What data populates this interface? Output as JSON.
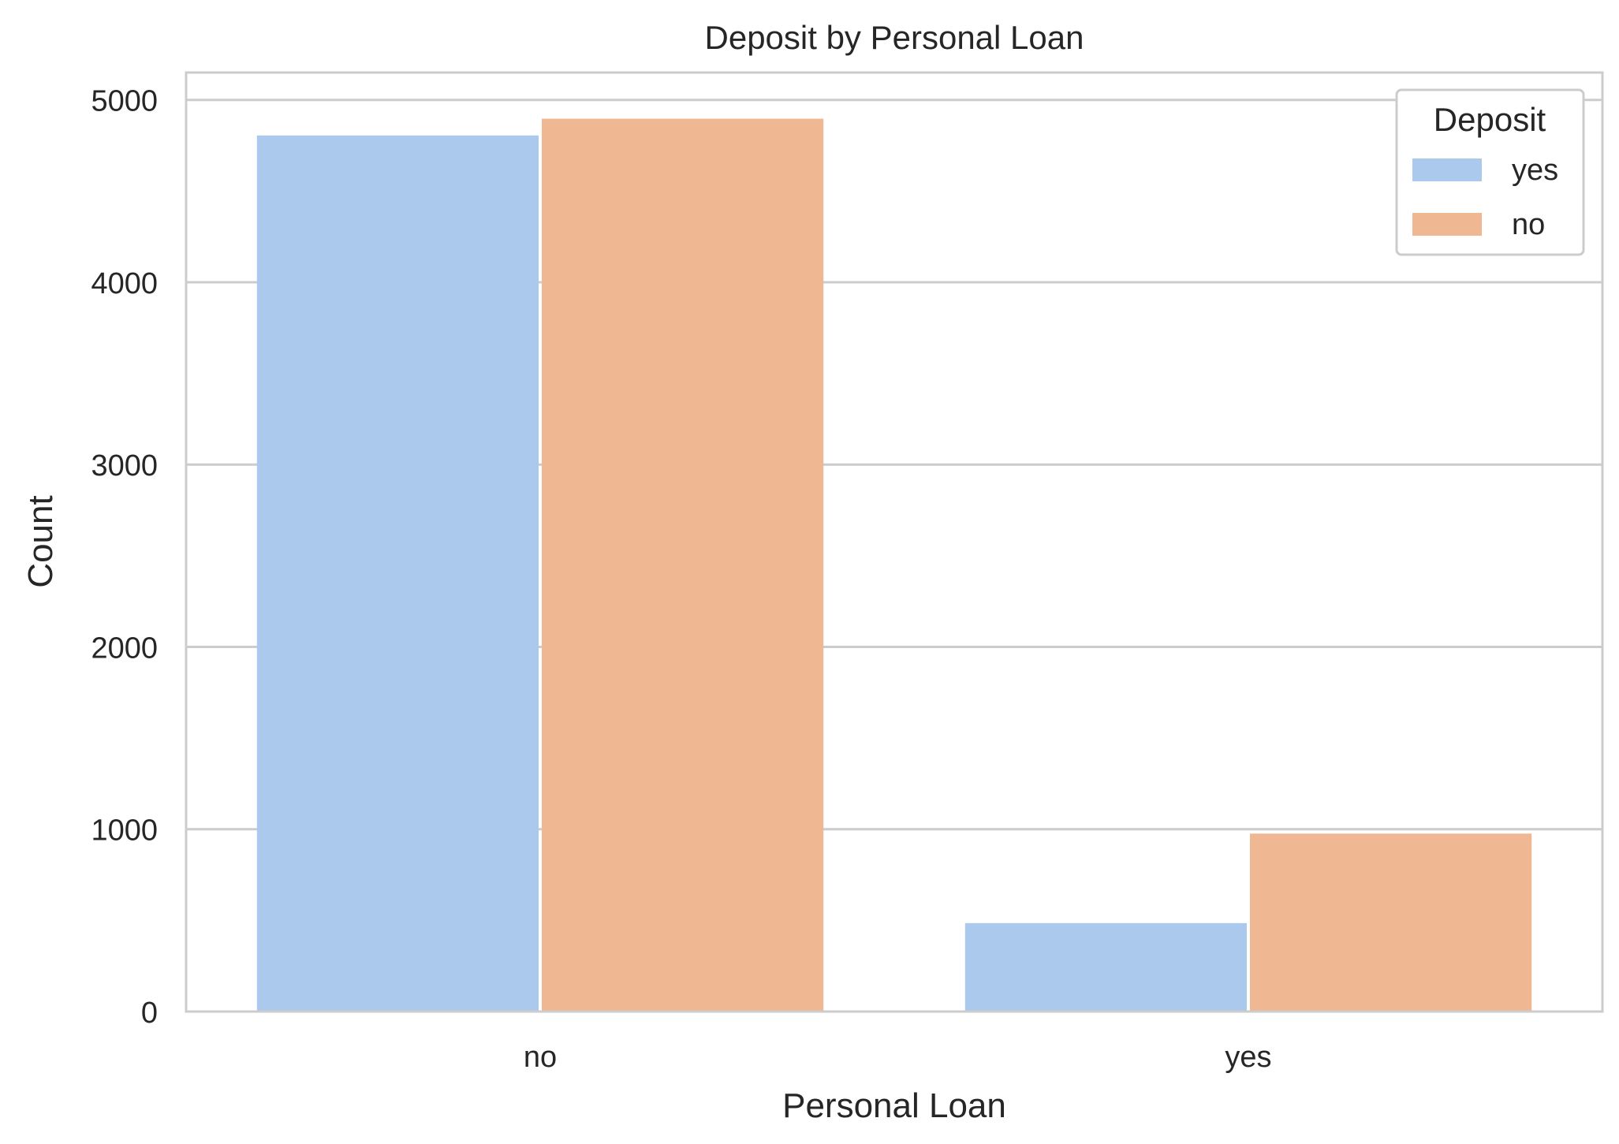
{
  "chart_data": {
    "type": "bar",
    "title": "Deposit by Personal Loan",
    "xlabel": "Personal Loan",
    "ylabel": "Count",
    "categories": [
      "no",
      "yes"
    ],
    "series": [
      {
        "name": "yes",
        "values": [
          4805,
          485
        ]
      },
      {
        "name": "no",
        "values": [
          4897,
          976
        ]
      }
    ],
    "ylim": [
      0,
      5150
    ],
    "yticks": [
      0,
      1000,
      2000,
      3000,
      4000,
      5000
    ],
    "grid": true,
    "legend": {
      "title": "Deposit",
      "placement": "top-right"
    },
    "colors": {
      "yes": "#abc9ed",
      "no": "#f0b793",
      "grid": "#cccccc",
      "text": "#262626"
    }
  }
}
